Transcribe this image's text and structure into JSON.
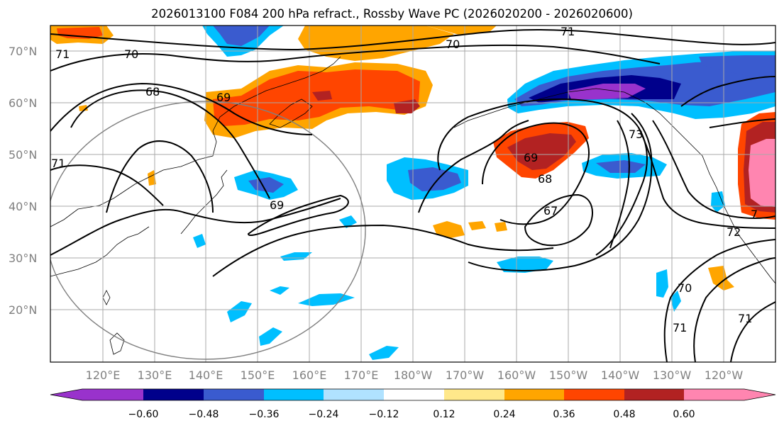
{
  "title": "2026013100 F084 200 hPa refract., Rossby Wave PC (2026020200 - 2026020600)",
  "colors": {
    "c_n060": "#9932cc",
    "c_n048": "#00008b",
    "c_n036": "#3a5bcf",
    "c_n024": "#00bfff",
    "c_n012": "#b0e2ff",
    "c_zero": "#ffffff",
    "c_p012": "#ffe88a",
    "c_p024": "#ffa500",
    "c_p036": "#ff4500",
    "c_p048": "#b22222",
    "c_p060": "#ff85b0",
    "grid": "#a9a9a9",
    "contour": "#000000",
    "circle": "#808080"
  },
  "lat_ticks": [
    "70°N",
    "60°N",
    "50°N",
    "40°N",
    "30°N",
    "20°N"
  ],
  "lon_ticks": [
    "120°E",
    "130°E",
    "140°E",
    "150°E",
    "160°E",
    "170°E",
    "180°W",
    "170°W",
    "160°W",
    "150°W",
    "140°W",
    "130°W",
    "120°W"
  ],
  "colorbar": {
    "tick_labels": [
      "−0.60",
      "−0.48",
      "−0.36",
      "−0.24",
      "−0.12",
      "0.12",
      "0.24",
      "0.36",
      "0.48",
      "0.60"
    ]
  },
  "contour_labels": [
    "71",
    "70",
    "70",
    "68",
    "69",
    "71",
    "71",
    "69",
    "68",
    "67",
    "69",
    "73",
    "72",
    "70",
    "71",
    "71",
    "7"
  ]
}
